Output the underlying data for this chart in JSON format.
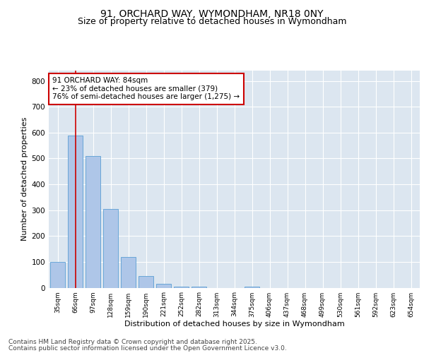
{
  "title1": "91, ORCHARD WAY, WYMONDHAM, NR18 0NY",
  "title2": "Size of property relative to detached houses in Wymondham",
  "xlabel": "Distribution of detached houses by size in Wymondham",
  "ylabel": "Number of detached properties",
  "categories": [
    "35sqm",
    "66sqm",
    "97sqm",
    "128sqm",
    "159sqm",
    "190sqm",
    "221sqm",
    "252sqm",
    "282sqm",
    "313sqm",
    "344sqm",
    "375sqm",
    "406sqm",
    "437sqm",
    "468sqm",
    "499sqm",
    "530sqm",
    "561sqm",
    "592sqm",
    "623sqm",
    "654sqm"
  ],
  "values": [
    100,
    590,
    510,
    305,
    120,
    45,
    15,
    5,
    5,
    0,
    0,
    5,
    0,
    0,
    0,
    0,
    0,
    0,
    0,
    0,
    0
  ],
  "bar_color": "#aec6e8",
  "bar_edge_color": "#5a9fd4",
  "vline_x": 1.0,
  "vline_color": "#cc0000",
  "annotation_text": "91 ORCHARD WAY: 84sqm\n← 23% of detached houses are smaller (379)\n76% of semi-detached houses are larger (1,275) →",
  "annotation_box_color": "#cc0000",
  "ylim": [
    0,
    840
  ],
  "yticks": [
    0,
    100,
    200,
    300,
    400,
    500,
    600,
    700,
    800
  ],
  "plot_bg_color": "#dce6f0",
  "footer1": "Contains HM Land Registry data © Crown copyright and database right 2025.",
  "footer2": "Contains public sector information licensed under the Open Government Licence v3.0.",
  "title_fontsize": 10,
  "subtitle_fontsize": 9,
  "annotation_fontsize": 7.5,
  "footer_fontsize": 6.5,
  "ylabel_fontsize": 8,
  "xlabel_fontsize": 8
}
